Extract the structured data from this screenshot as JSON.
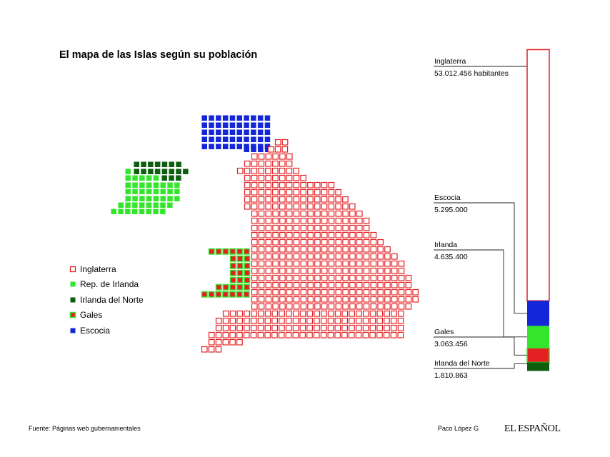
{
  "title": "El mapa de las Islas según su población",
  "colors": {
    "inglaterra": "#e42023",
    "irlanda": "#33e52b",
    "irlanda_norte": "#0d5e0f",
    "gales_fill": "#e42023",
    "gales_border": "#33e52b",
    "escocia": "#1326d8"
  },
  "legend": [
    {
      "key": "inglaterra",
      "label": "Inglaterra",
      "style": "outline",
      "color": "#e42023"
    },
    {
      "key": "irlanda",
      "label": "Rep. de Irlanda",
      "style": "fill",
      "color": "#33e52b"
    },
    {
      "key": "irlanda_norte",
      "label": "Irlanda del Norte",
      "style": "fill",
      "color": "#0d5e0f"
    },
    {
      "key": "gales",
      "label": "Gales",
      "style": "gales",
      "color": "#e42023",
      "border": "#33e52b"
    },
    {
      "key": "escocia",
      "label": "Escocia",
      "style": "fill",
      "color": "#1326d8"
    }
  ],
  "chart_data": {
    "type": "bar",
    "orientation": "vertical-stacked",
    "title": "El mapa de las Islas según su población",
    "series": [
      {
        "name": "Inglaterra",
        "value": 53012456,
        "label": "Inglaterra",
        "value_label": "53.012.456 habitantes",
        "color": "#e42023",
        "style": "outline"
      },
      {
        "name": "Escocia",
        "value": 5295000,
        "label": "Escocia",
        "value_label": "5.295.000",
        "color": "#1326d8",
        "style": "fill"
      },
      {
        "name": "Irlanda",
        "value": 4635400,
        "label": "Irlanda",
        "value_label": "4.635.400",
        "color": "#33e52b",
        "style": "fill"
      },
      {
        "name": "Gales",
        "value": 3063456,
        "label": "Gales",
        "value_label": "3.063.456",
        "color": "#e42023",
        "style": "gales"
      },
      {
        "name": "Irlanda del Norte",
        "value": 1810863,
        "label": "Irlanda del Norte",
        "value_label": "1.810.863",
        "color": "#0d5e0f",
        "style": "fill"
      }
    ]
  },
  "footer": {
    "source": "Fuente: Páginas web gubernamentales",
    "author": "Paco López G",
    "brand": "EL ESPAÑOL"
  }
}
